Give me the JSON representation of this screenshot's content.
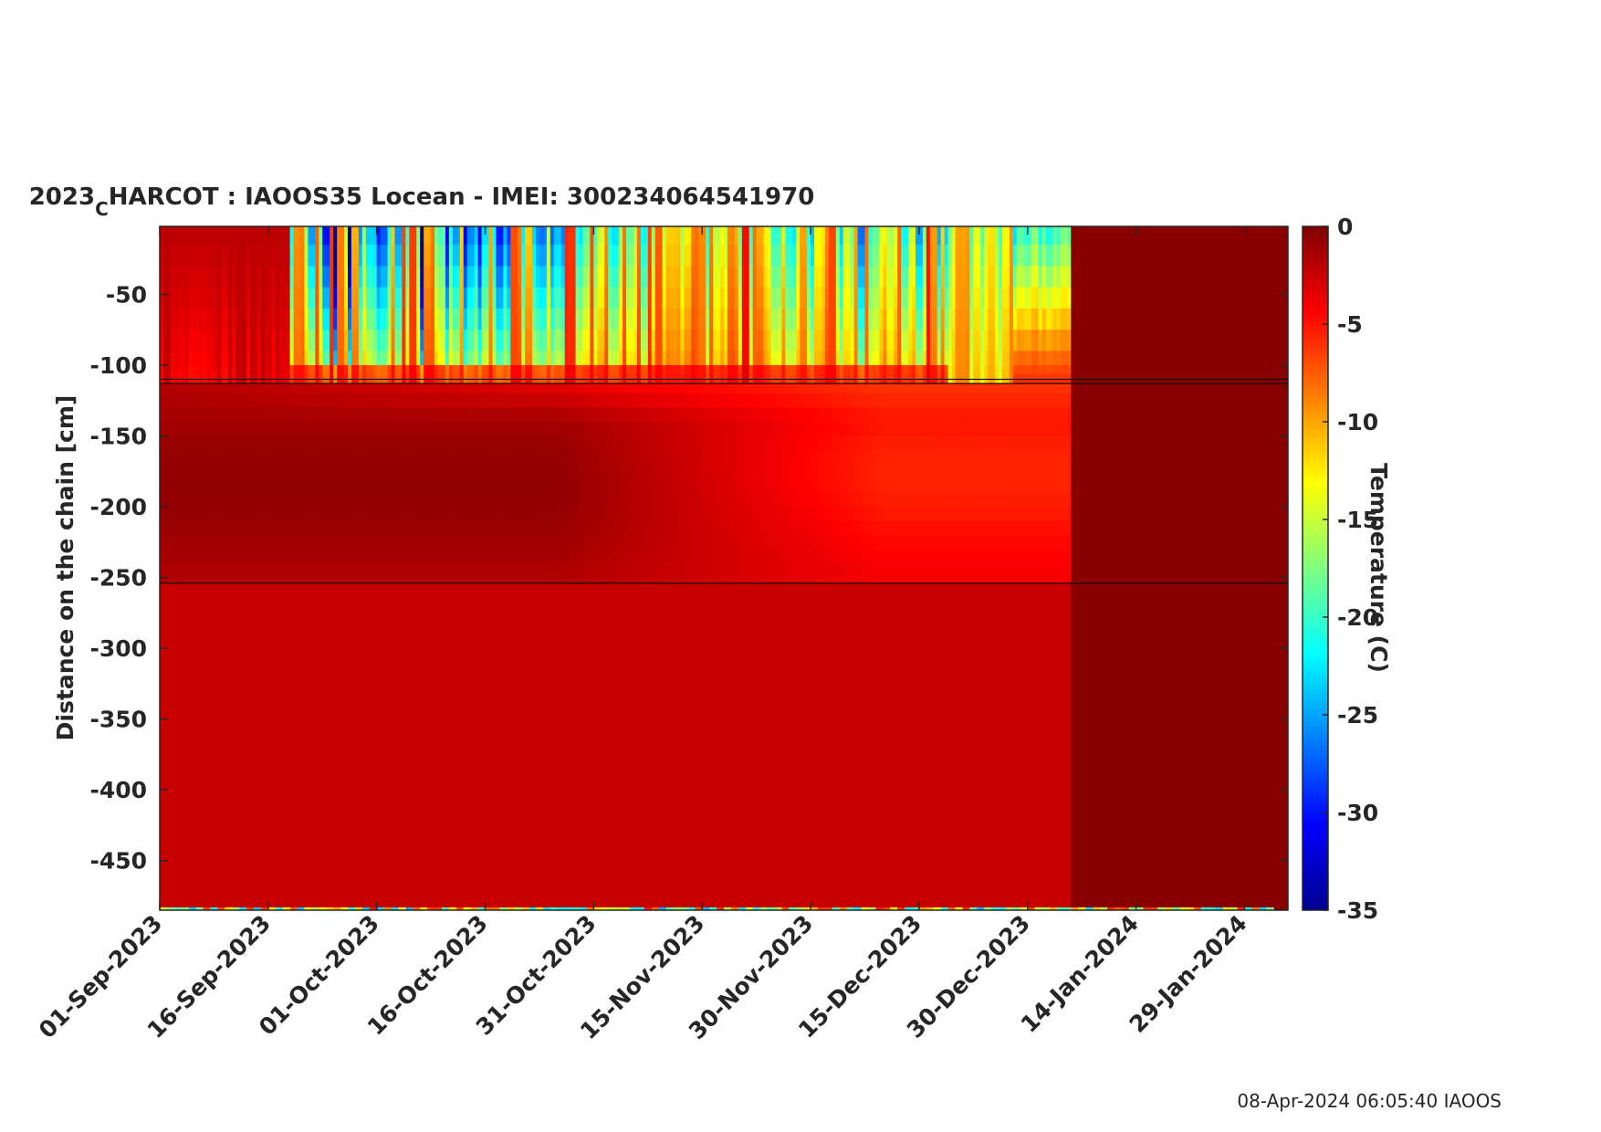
{
  "footer": {
    "text": "08-Apr-2024 06:05:40 IAOOS"
  },
  "chart_data": {
    "type": "heatmap",
    "title": {
      "prefix": "2023",
      "subscript": "C",
      "rest": "HARCOT : IAOOS35  Locean - IMEI: 300234064541970"
    },
    "xlabel": "",
    "ylabel": "Distance on the chain [cm]",
    "x_range": [
      "2023-09-01",
      "2024-02-04"
    ],
    "x_tick_dates": [
      "2023-09-01",
      "2023-09-16",
      "2023-10-01",
      "2023-10-16",
      "2023-10-31",
      "2023-11-15",
      "2023-11-30",
      "2023-12-15",
      "2023-12-30",
      "2024-01-14",
      "2024-01-29"
    ],
    "x_tick_labels": [
      "01-Sep-2023",
      "16-Sep-2023",
      "01-Oct-2023",
      "16-Oct-2023",
      "31-Oct-2023",
      "15-Nov-2023",
      "30-Nov-2023",
      "15-Dec-2023",
      "30-Dec-2023",
      "14-Jan-2024",
      "29-Jan-2024"
    ],
    "ylim": [
      -485,
      -2
    ],
    "y_ticks": [
      -50,
      -100,
      -150,
      -200,
      -250,
      -300,
      -350,
      -400,
      -450
    ],
    "y_tick_labels": [
      "-50",
      "-100",
      "-150",
      "-200",
      "-250",
      "-300",
      "-350",
      "-400",
      "-450"
    ],
    "colorbar": {
      "label": "Temperature (C)",
      "clim": [
        -35,
        0
      ],
      "ticks": [
        0,
        -5,
        -10,
        -15,
        -20,
        -25,
        -30,
        -35
      ],
      "tick_labels": [
        "0",
        "-5",
        "-10",
        "-15",
        "-20",
        "-25",
        "-30",
        "-35"
      ],
      "colormap": "jet"
    },
    "horizontal_lines_y": [
      -110,
      -113,
      -254
    ],
    "data_end_date": "2024-01-05",
    "depth_profile": [
      {
        "period": "2023-09-01 to 2023-09-20",
        "above_-110": -2,
        "-110_to_-250": -0.5,
        "below_-250": -1.5
      },
      {
        "period": "2023-09-20 to 2023-12-20",
        "above_-110": -22,
        "-110_to_-250": -1,
        "below_-250": -1.5
      },
      {
        "period": "2023-12-20 to 2024-01-05",
        "above_-110": -12,
        "-110_to_-250": -4,
        "below_-250": -1.5
      },
      {
        "period": "2024-01-05 to 2024-02-04",
        "above_-110": 0,
        "-110_to_-250": 0,
        "below_-250": 0
      }
    ]
  }
}
